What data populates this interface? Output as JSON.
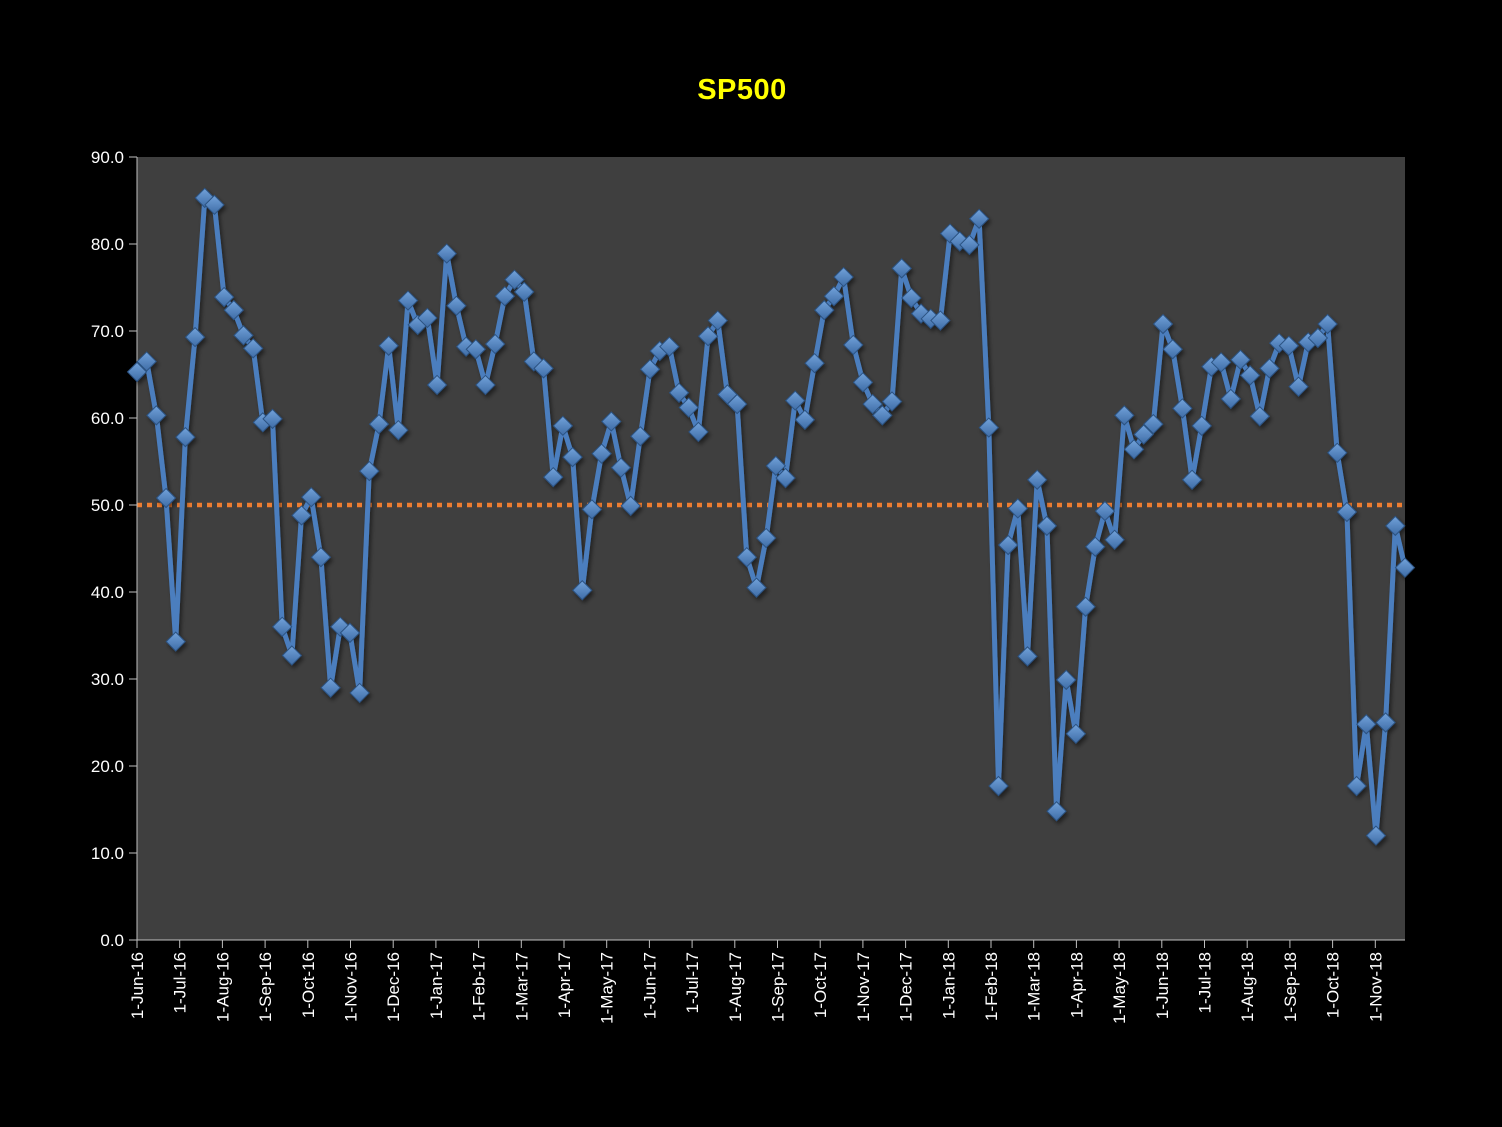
{
  "chart_data": {
    "type": "line",
    "title": "SP500",
    "xlabel": "",
    "ylabel": "",
    "ylim": [
      0,
      90
    ],
    "grid": "off",
    "legend": "none",
    "marker": "diamond",
    "x_unit": "weekly",
    "weeks_per_month": 4.345,
    "y_tick_labels": [
      "0.0",
      "10.0",
      "20.0",
      "30.0",
      "40.0",
      "50.0",
      "60.0",
      "70.0",
      "80.0",
      "90.0"
    ],
    "x_tick_labels": [
      "1-Jun-16",
      "1-Jul-16",
      "1-Aug-16",
      "1-Sep-16",
      "1-Oct-16",
      "1-Nov-16",
      "1-Dec-16",
      "1-Jan-17",
      "1-Feb-17",
      "1-Mar-17",
      "1-Apr-17",
      "1-May-17",
      "1-Jun-17",
      "1-Jul-17",
      "1-Aug-17",
      "1-Sep-17",
      "1-Oct-17",
      "1-Nov-17",
      "1-Dec-17",
      "1-Jan-18",
      "1-Feb-18",
      "1-Mar-18",
      "1-Apr-18",
      "1-May-18",
      "1-Jun-18",
      "1-Jul-18",
      "1-Aug-18",
      "1-Sep-18",
      "1-Oct-18",
      "1-Nov-18"
    ],
    "reference_line": {
      "y": 50.0,
      "style": "dotted"
    },
    "series": [
      {
        "name": "SP500",
        "values": [
          65.3,
          66.5,
          60.3,
          50.8,
          34.3,
          57.8,
          69.3,
          85.3,
          84.5,
          73.9,
          72.4,
          69.5,
          68.0,
          59.5,
          59.9,
          36.0,
          32.7,
          48.8,
          50.9,
          44.0,
          29.0,
          36.0,
          35.3,
          28.4,
          53.9,
          59.3,
          68.3,
          58.6,
          73.5,
          70.7,
          71.5,
          63.8,
          78.9,
          72.9,
          68.2,
          67.9,
          63.8,
          68.5,
          74.0,
          75.9,
          74.5,
          66.5,
          65.7,
          53.2,
          59.1,
          55.5,
          40.2,
          49.5,
          55.9,
          59.6,
          54.3,
          49.9,
          57.9,
          65.6,
          67.7,
          68.2,
          62.9,
          61.2,
          58.4,
          69.4,
          71.2,
          62.7,
          61.6,
          44.0,
          40.5,
          46.2,
          54.5,
          53.1,
          62.0,
          59.8,
          66.3,
          72.4,
          74.0,
          76.2,
          68.4,
          64.1,
          61.6,
          60.3,
          61.9,
          77.2,
          73.8,
          72.0,
          71.4,
          71.2,
          81.2,
          80.3,
          79.9,
          82.9,
          58.9,
          17.7,
          45.4,
          49.6,
          32.6,
          52.9,
          47.6,
          14.8,
          29.9,
          23.7,
          38.3,
          45.2,
          49.3,
          46.0,
          60.3,
          56.4,
          58.1,
          59.3,
          70.8,
          67.9,
          61.1,
          52.9,
          59.1,
          65.9,
          66.4,
          62.2,
          66.7,
          64.9,
          60.2,
          65.7,
          68.6,
          68.3,
          63.6,
          68.7,
          69.2,
          70.8,
          56.0,
          49.2,
          17.7,
          24.8,
          12.0,
          25.0,
          47.6,
          42.8
        ]
      }
    ]
  },
  "colors": {
    "page_background": "#000000",
    "plot_background": "#3F3F3F",
    "series_line": "#4B7EBE",
    "marker_top": "#72A2DA",
    "marker_bottom": "#3E6CA6",
    "marker_edge": "#2C5282",
    "reference_line": "#ED7D31",
    "axis_text": "#FFFFFF",
    "axis_line": "#BFBFBF",
    "title_text": "#FFFF00"
  }
}
